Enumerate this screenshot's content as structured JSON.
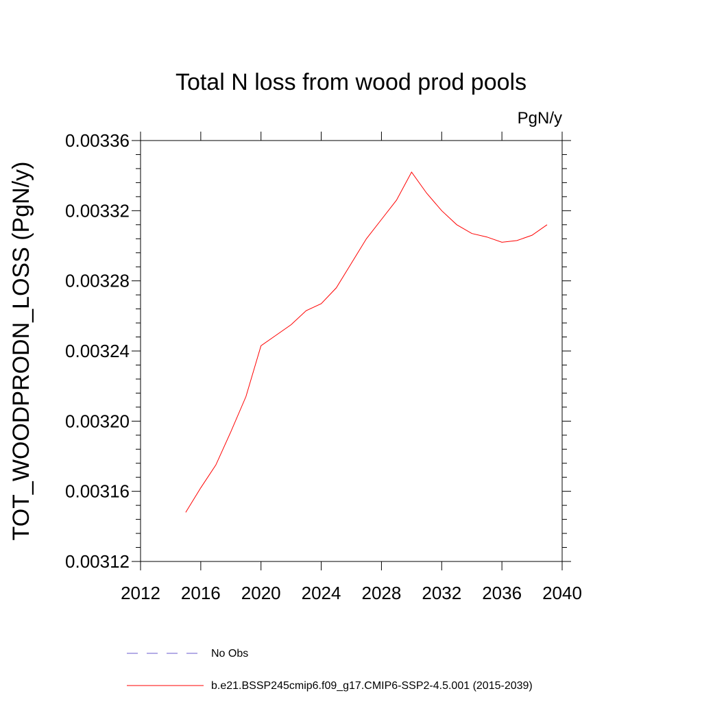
{
  "chart_data": {
    "type": "line",
    "title": "Total N loss from wood prod pools",
    "units": "PgN/y",
    "xlabel": "",
    "ylabel": "TOT_WOODPRODN_LOSS  (PgN/y)",
    "xlim": [
      2012,
      2040
    ],
    "ylim": [
      0.00312,
      0.00336
    ],
    "x_ticks": [
      2012,
      2016,
      2020,
      2024,
      2028,
      2032,
      2036,
      2040
    ],
    "x_tick_labels": [
      "2012",
      "2016",
      "2020",
      "2024",
      "2028",
      "2032",
      "2036",
      "2040"
    ],
    "y_ticks": [
      0.00312,
      0.00316,
      0.0032,
      0.00324,
      0.00328,
      0.00332,
      0.00336
    ],
    "y_tick_labels": [
      "0.00312",
      "0.00316",
      "0.00320",
      "0.00324",
      "0.00328",
      "0.00332",
      "0.00336"
    ],
    "grid": false,
    "legend_position": "bottom",
    "series": [
      {
        "name": "b.e21.BSSP245cmip6.f09_g17.CMIP6-SSP2-4.5.001 (2015-2039)",
        "color": "#ff0000",
        "style": "solid",
        "x": [
          2015,
          2016,
          2017,
          2018,
          2019,
          2020,
          2021,
          2022,
          2023,
          2024,
          2025,
          2026,
          2027,
          2028,
          2029,
          2030,
          2031,
          2032,
          2033,
          2034,
          2035,
          2036,
          2037,
          2038,
          2039
        ],
        "y": [
          0.003148,
          0.003162,
          0.003175,
          0.003194,
          0.003214,
          0.003243,
          0.003249,
          0.003255,
          0.003263,
          0.003267,
          0.003276,
          0.00329,
          0.003304,
          0.003315,
          0.003326,
          0.003342,
          0.00333,
          0.00332,
          0.003312,
          0.003307,
          0.003305,
          0.003302,
          0.003303,
          0.003306,
          0.003312
        ]
      }
    ],
    "legend": [
      {
        "label": "No Obs",
        "color": "#6a5acd",
        "style": "dashed"
      },
      {
        "label": "b.e21.BSSP245cmip6.f09_g17.CMIP6-SSP2-4.5.001 (2015-2039)",
        "color": "#ff0000",
        "style": "solid"
      }
    ]
  }
}
